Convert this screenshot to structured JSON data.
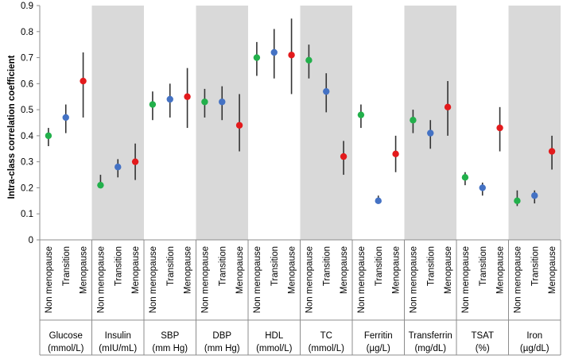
{
  "chart_data": {
    "type": "scatter",
    "ylabel": "Intra-class correlation coefficient",
    "ylim": [
      0,
      0.9
    ],
    "yticks": [
      "0",
      "0.1",
      "0.2",
      "0.3",
      "0.4",
      "0.5",
      "0.6",
      "0.7",
      "0.8",
      "0.9"
    ],
    "grid": false,
    "subgroups": [
      "Non menopause",
      "Transition",
      "Menopause"
    ],
    "colors": {
      "Non menopause": "#22b04b",
      "Transition": "#4472c4",
      "Menopause": "#e31a1c",
      "shade": "#d9d9d9",
      "errorbar": "#333333"
    },
    "groups": [
      {
        "label1": "Glucose",
        "label2": "(mmol/L)",
        "shaded": false,
        "points": [
          {
            "y": 0.4,
            "lo": 0.36,
            "hi": 0.43
          },
          {
            "y": 0.47,
            "lo": 0.41,
            "hi": 0.52
          },
          {
            "y": 0.61,
            "lo": 0.47,
            "hi": 0.72
          }
        ]
      },
      {
        "label1": "Insulin",
        "label2": "(mIU/mL)",
        "shaded": true,
        "points": [
          {
            "y": 0.21,
            "lo": 0.2,
            "hi": 0.25
          },
          {
            "y": 0.28,
            "lo": 0.24,
            "hi": 0.31
          },
          {
            "y": 0.3,
            "lo": 0.23,
            "hi": 0.37
          }
        ]
      },
      {
        "label1": "SBP",
        "label2": "(mm Hg)",
        "shaded": false,
        "points": [
          {
            "y": 0.52,
            "lo": 0.46,
            "hi": 0.57
          },
          {
            "y": 0.54,
            "lo": 0.47,
            "hi": 0.6
          },
          {
            "y": 0.55,
            "lo": 0.43,
            "hi": 0.66
          }
        ]
      },
      {
        "label1": "DBP",
        "label2": "(mm Hg)",
        "shaded": true,
        "points": [
          {
            "y": 0.53,
            "lo": 0.47,
            "hi": 0.58
          },
          {
            "y": 0.53,
            "lo": 0.46,
            "hi": 0.59
          },
          {
            "y": 0.44,
            "lo": 0.34,
            "hi": 0.56
          }
        ]
      },
      {
        "label1": "HDL",
        "label2": "(mmol/L)",
        "shaded": false,
        "points": [
          {
            "y": 0.7,
            "lo": 0.63,
            "hi": 0.76
          },
          {
            "y": 0.72,
            "lo": 0.62,
            "hi": 0.81
          },
          {
            "y": 0.71,
            "lo": 0.56,
            "hi": 0.85
          }
        ]
      },
      {
        "label1": "TC",
        "label2": "(mmol/L)",
        "shaded": true,
        "points": [
          {
            "y": 0.69,
            "lo": 0.62,
            "hi": 0.75
          },
          {
            "y": 0.57,
            "lo": 0.49,
            "hi": 0.64
          },
          {
            "y": 0.32,
            "lo": 0.25,
            "hi": 0.38
          }
        ]
      },
      {
        "label1": "Ferritin",
        "label2": "(µg/L)",
        "shaded": false,
        "points": [
          {
            "y": 0.48,
            "lo": 0.43,
            "hi": 0.52
          },
          {
            "y": 0.15,
            "lo": 0.14,
            "hi": 0.17
          },
          {
            "y": 0.33,
            "lo": 0.26,
            "hi": 0.4
          }
        ]
      },
      {
        "label1": "Transferrin",
        "label2": "(mg/dL)",
        "shaded": true,
        "points": [
          {
            "y": 0.46,
            "lo": 0.41,
            "hi": 0.5
          },
          {
            "y": 0.41,
            "lo": 0.35,
            "hi": 0.46
          },
          {
            "y": 0.51,
            "lo": 0.4,
            "hi": 0.61
          }
        ]
      },
      {
        "label1": "TSAT",
        "label2": "(%)",
        "shaded": false,
        "points": [
          {
            "y": 0.24,
            "lo": 0.21,
            "hi": 0.26
          },
          {
            "y": 0.2,
            "lo": 0.17,
            "hi": 0.22
          },
          {
            "y": 0.43,
            "lo": 0.34,
            "hi": 0.51
          }
        ]
      },
      {
        "label1": "Iron",
        "label2": "(µg/dL)",
        "shaded": true,
        "points": [
          {
            "y": 0.15,
            "lo": 0.13,
            "hi": 0.19
          },
          {
            "y": 0.17,
            "lo": 0.14,
            "hi": 0.19
          },
          {
            "y": 0.34,
            "lo": 0.27,
            "hi": 0.4
          }
        ]
      }
    ]
  }
}
